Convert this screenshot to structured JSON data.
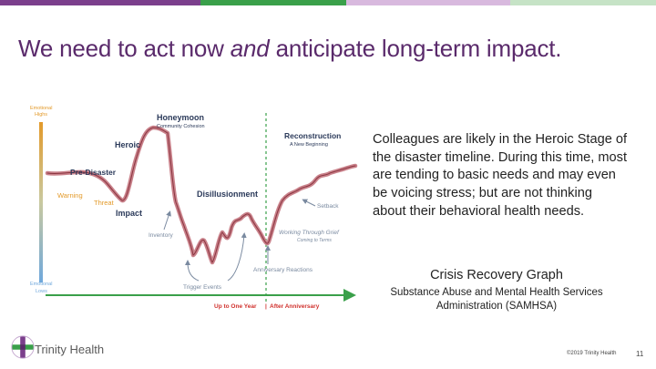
{
  "slide": {
    "title_part1": "We need to act now ",
    "title_em": "and",
    "title_part2": " anticipate long-term impact.",
    "body": "Colleagues are likely in the Heroic Stage of the disaster timeline.  During this time, most are tending to basic needs and may even be voicing stress; but are not thinking about their behavioral health needs.",
    "caption_title": "Crisis Recovery Graph",
    "caption_source": "Substance Abuse and Mental Health Services Administration (SAMHSA)",
    "logo_text": "Trinity Health",
    "copyright": "©2019 Trinity Health",
    "page_number": "11"
  },
  "colors": {
    "title": "#5a2a6b",
    "curve": "#c9818a",
    "curve_core": "#8a3540",
    "timeline": "#3aa04a",
    "label_dark": "#2b3a5a",
    "label_orange": "#e39a2a",
    "label_grey": "#7a8aa0",
    "topbar": [
      "#7b3f8c",
      "#3aa04a",
      "#d8b9de",
      "#c6e3c6"
    ]
  },
  "chart_data": {
    "type": "line",
    "axis_top_label_1": "Emotional",
    "axis_top_label_2": "Highs",
    "axis_bottom_label_1": "Emotional",
    "axis_bottom_label_2": "Lows",
    "stages": {
      "honeymoon": "Honeymoon",
      "community_cohesion": "Community Cohesion",
      "heroic": "Heroic",
      "pre_disaster": "Pre-Disaster",
      "warning": "Warning",
      "threat": "Threat",
      "impact": "Impact",
      "disillusionment": "Disillusionment",
      "inventory": "Inventory",
      "trigger_events": "Trigger Events",
      "anniversary_reactions": "Anniversary Reactions",
      "reconstruction": "Reconstruction",
      "new_beginning": "A New Beginning",
      "setback": "Setback",
      "working_through_grief": "Working Through Grief",
      "coming_to_terms": "Coming to Terms"
    },
    "timeline": {
      "left": "Up to One Year",
      "divider": "|",
      "right": "After Anniversary"
    }
  }
}
